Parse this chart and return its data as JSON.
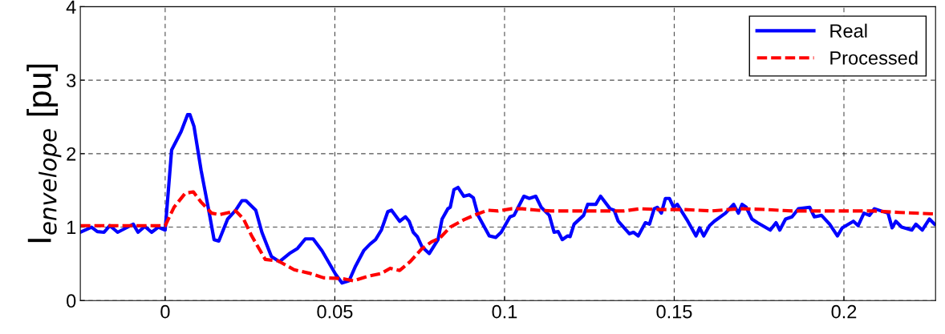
{
  "chart_data": {
    "type": "line",
    "ylabel": "I$_{envelope}$ [pu]",
    "xlim": [
      -0.025,
      0.227
    ],
    "ylim": [
      0,
      4
    ],
    "xticks": [
      0,
      0.05,
      0.1,
      0.15,
      0.2
    ],
    "yticks": [
      0,
      1,
      2,
      3,
      4
    ],
    "grid": true,
    "legend": "top right",
    "marker": "none",
    "series": [
      {
        "name": "Real",
        "color": "#0000ff",
        "line_style": "solid",
        "x": [
          -0.025,
          -0.0217,
          -0.02,
          -0.018,
          -0.0163,
          -0.014,
          -0.0115,
          -0.0094,
          -0.008,
          -0.006,
          -0.004,
          -0.002,
          0.0,
          0.0019,
          0.0047,
          0.0066,
          0.0073,
          0.0085,
          0.0106,
          0.013,
          0.0144,
          0.0158,
          0.0184,
          0.0208,
          0.0226,
          0.0238,
          0.0267,
          0.0285,
          0.0313,
          0.0337,
          0.0366,
          0.039,
          0.0413,
          0.0436,
          0.0462,
          0.0502,
          0.0521,
          0.0542,
          0.0561,
          0.0585,
          0.0604,
          0.062,
          0.0637,
          0.0656,
          0.0667,
          0.0691,
          0.0708,
          0.0719,
          0.0731,
          0.0743,
          0.0757,
          0.0778,
          0.0804,
          0.0816,
          0.0833,
          0.084,
          0.0851,
          0.0863,
          0.088,
          0.0896,
          0.0908,
          0.0922,
          0.0955,
          0.0974,
          0.099,
          0.1016,
          0.1028,
          0.1057,
          0.1073,
          0.1092,
          0.1108,
          0.1132,
          0.1146,
          0.1158,
          0.117,
          0.1186,
          0.1193,
          0.1205,
          0.1233,
          0.1245,
          0.1269,
          0.1283,
          0.1311,
          0.1323,
          0.1335,
          0.1368,
          0.138,
          0.1394,
          0.1415,
          0.1427,
          0.1441,
          0.145,
          0.1462,
          0.1474,
          0.1486,
          0.1498,
          0.1509,
          0.154,
          0.1564,
          0.1575,
          0.1587,
          0.1604,
          0.1618,
          0.1651,
          0.1675,
          0.1689,
          0.17,
          0.1712,
          0.1729,
          0.1745,
          0.1783,
          0.18,
          0.1811,
          0.1828,
          0.1847,
          0.1866,
          0.1899,
          0.1913,
          0.1934,
          0.1958,
          0.1981,
          0.1995,
          0.2028,
          0.2042,
          0.2059,
          0.2075,
          0.209,
          0.213,
          0.2142,
          0.2153,
          0.217,
          0.22,
          0.2212,
          0.2231,
          0.2252,
          0.2267
        ],
        "values": [
          0.93,
          1.0,
          0.94,
          0.93,
          1.02,
          0.93,
          0.99,
          1.04,
          0.93,
          1.01,
          0.93,
          1.0,
          0.96,
          2.05,
          2.3,
          2.53,
          2.53,
          2.37,
          1.77,
          1.19,
          0.83,
          0.81,
          1.11,
          1.23,
          1.36,
          1.36,
          1.23,
          0.93,
          0.6,
          0.53,
          0.64,
          0.71,
          0.84,
          0.84,
          0.68,
          0.36,
          0.24,
          0.27,
          0.47,
          0.68,
          0.77,
          0.83,
          0.96,
          1.21,
          1.23,
          1.08,
          1.14,
          1.08,
          0.93,
          0.87,
          0.73,
          0.64,
          0.83,
          1.11,
          1.25,
          1.27,
          1.51,
          1.54,
          1.42,
          1.44,
          1.4,
          1.16,
          0.88,
          0.86,
          0.93,
          1.14,
          1.16,
          1.42,
          1.39,
          1.42,
          1.27,
          1.16,
          0.93,
          0.94,
          0.83,
          0.88,
          0.87,
          1.04,
          1.16,
          1.31,
          1.31,
          1.42,
          1.25,
          1.23,
          1.08,
          0.91,
          0.93,
          0.88,
          1.06,
          1.04,
          1.25,
          1.27,
          1.19,
          1.39,
          1.39,
          1.27,
          1.31,
          1.08,
          0.88,
          0.99,
          0.88,
          1.02,
          1.08,
          1.19,
          1.31,
          1.19,
          1.31,
          1.27,
          1.11,
          1.06,
          0.96,
          1.06,
          0.96,
          1.11,
          1.14,
          1.25,
          1.27,
          1.14,
          1.16,
          1.04,
          0.88,
          0.99,
          1.08,
          1.02,
          1.19,
          1.16,
          1.25,
          1.19,
          0.99,
          1.08,
          1.0,
          0.96,
          1.04,
          0.96,
          1.11,
          1.04
        ]
      },
      {
        "name": "Processed",
        "color": "#ff0000",
        "line_style": "dashed",
        "x": [
          -0.025,
          0.0,
          0.0026,
          0.0059,
          0.0083,
          0.0106,
          0.0137,
          0.016,
          0.0208,
          0.0231,
          0.0255,
          0.0295,
          0.0333,
          0.038,
          0.0427,
          0.0467,
          0.0521,
          0.0554,
          0.0597,
          0.0637,
          0.0663,
          0.0691,
          0.0722,
          0.0755,
          0.0785,
          0.0809,
          0.084,
          0.088,
          0.091,
          0.095,
          0.0981,
          0.1021,
          0.1052,
          0.1099,
          0.1139,
          0.121,
          0.1288,
          0.1351,
          0.1399,
          0.145,
          0.153,
          0.161,
          0.1689,
          0.1768,
          0.1847,
          0.1926,
          0.2005,
          0.2084,
          0.2163,
          0.2265
        ],
        "values": [
          1.02,
          1.02,
          1.27,
          1.46,
          1.48,
          1.34,
          1.19,
          1.17,
          1.22,
          1.11,
          0.88,
          0.56,
          0.54,
          0.42,
          0.37,
          0.31,
          0.3,
          0.27,
          0.33,
          0.37,
          0.44,
          0.41,
          0.53,
          0.7,
          0.8,
          0.85,
          1.0,
          1.1,
          1.16,
          1.23,
          1.22,
          1.25,
          1.25,
          1.23,
          1.22,
          1.22,
          1.22,
          1.22,
          1.25,
          1.24,
          1.24,
          1.22,
          1.25,
          1.24,
          1.22,
          1.22,
          1.22,
          1.22,
          1.2,
          1.18
        ]
      }
    ]
  }
}
